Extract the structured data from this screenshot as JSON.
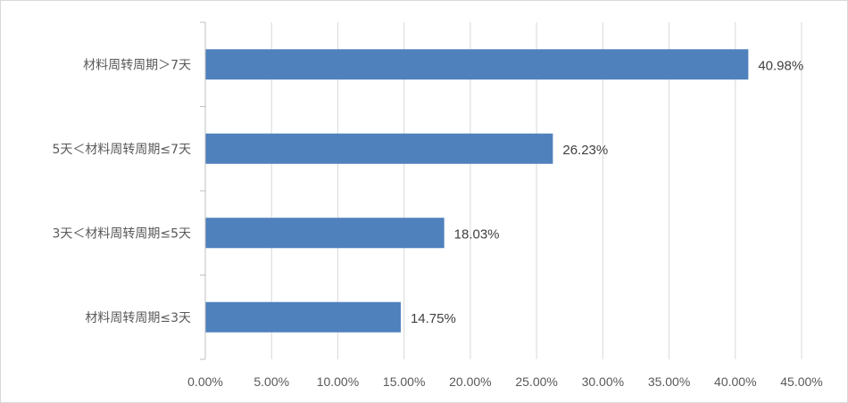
{
  "chart_data": {
    "type": "bar",
    "orientation": "horizontal",
    "title": "",
    "xlabel": "",
    "ylabel": "",
    "categories": [
      "材料周转周期＞7天",
      "5天＜材料周转周期≤7天",
      "3天＜材料周转周期≤5天",
      "材料周转周期≤3天"
    ],
    "values": [
      40.98,
      26.23,
      18.03,
      14.75
    ],
    "data_labels": [
      "40.98%",
      "26.23%",
      "18.03%",
      "14.75%"
    ],
    "xlim": [
      0,
      45
    ],
    "x_ticks": [
      0,
      5,
      10,
      15,
      20,
      25,
      30,
      35,
      40,
      45
    ],
    "x_tick_labels": [
      "0.00%",
      "5.00%",
      "10.00%",
      "15.00%",
      "20.00%",
      "25.00%",
      "30.00%",
      "35.00%",
      "40.00%",
      "45.00%"
    ],
    "grid": "vertical",
    "legend": "none",
    "colors": {
      "bar": "#4f81bd",
      "grid": "#d9d9d9",
      "axis": "#bfbfbf"
    }
  }
}
